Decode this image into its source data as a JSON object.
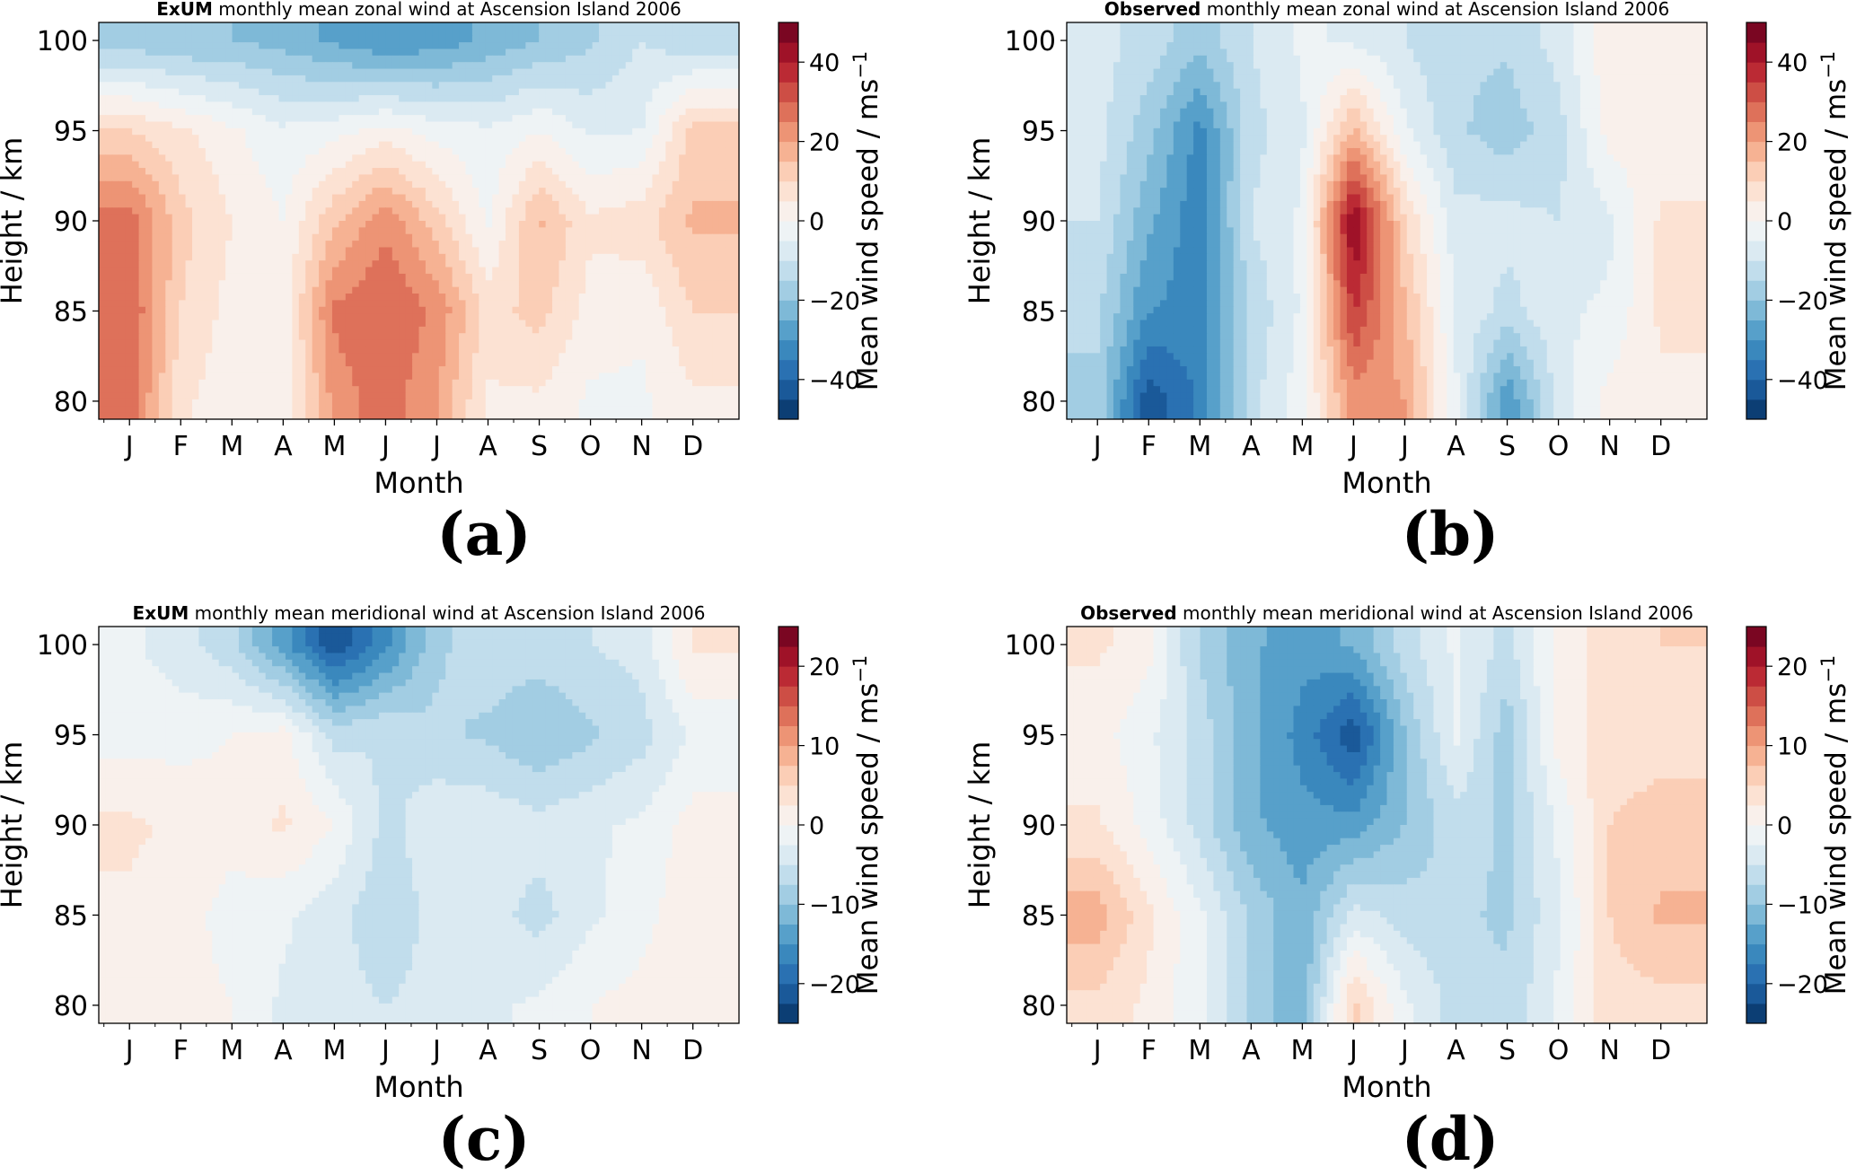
{
  "chart_data": [
    {
      "id": "a",
      "type": "contour",
      "panel_label": "(a)",
      "title_bold": "ExUM",
      "title_rest": " monthly mean zonal wind at Ascension Island 2006",
      "xlabel": "Month",
      "ylabel": "Height / km",
      "x_ticks": [
        "J",
        "F",
        "M",
        "A",
        "M",
        "J",
        "J",
        "A",
        "S",
        "O",
        "N",
        "D"
      ],
      "y_ticks": [
        80,
        85,
        90,
        95,
        100
      ],
      "ylim": [
        79,
        101
      ],
      "colorbar": {
        "label": "Mean wind speed / ms",
        "label_sup": "−1",
        "range": [
          -50,
          50
        ],
        "ticks": [
          40,
          20,
          0,
          -20,
          -40
        ],
        "tick_labels": [
          "40",
          "20",
          "0",
          "−20",
          "−40"
        ]
      },
      "heights": [
        80,
        85,
        90,
        95,
        100
      ],
      "values": [
        [
          28,
          6,
          2,
          0,
          22,
          28,
          20,
          4,
          4,
          -1,
          -1,
          4
        ],
        [
          30,
          10,
          3,
          2,
          26,
          30,
          24,
          8,
          12,
          3,
          1,
          10
        ],
        [
          28,
          12,
          5,
          0,
          14,
          24,
          12,
          -1,
          16,
          6,
          8,
          16
        ],
        [
          10,
          6,
          1,
          -4,
          -2,
          2,
          -2,
          -4,
          0,
          -6,
          -5,
          12
        ],
        [
          -18,
          -20,
          -20,
          -22,
          -26,
          -30,
          -28,
          -24,
          -20,
          -16,
          -10,
          -14
        ]
      ]
    },
    {
      "id": "b",
      "type": "contour",
      "panel_label": "(b)",
      "title_bold": "Observed",
      "title_rest": " monthly mean zonal wind at Ascension Island 2006",
      "xlabel": "Month",
      "ylabel": "Height / km",
      "x_ticks": [
        "J",
        "F",
        "M",
        "A",
        "M",
        "J",
        "J",
        "A",
        "S",
        "O",
        "N",
        "D"
      ],
      "y_ticks": [
        80,
        85,
        90,
        95,
        100
      ],
      "ylim": [
        79,
        101
      ],
      "colorbar": {
        "label": "Mean wind speed / ms",
        "label_sup": "−1",
        "range": [
          -50,
          50
        ],
        "ticks": [
          40,
          20,
          0,
          -20,
          -40
        ],
        "tick_labels": [
          "40",
          "20",
          "0",
          "−20",
          "−40"
        ]
      },
      "heights": [
        80,
        85,
        90,
        95,
        100
      ],
      "values": [
        [
          -16,
          -44,
          -34,
          -12,
          -2,
          22,
          20,
          -4,
          -30,
          -8,
          2,
          4
        ],
        [
          -14,
          -30,
          -32,
          -14,
          -4,
          36,
          16,
          -6,
          -12,
          -6,
          -4,
          6
        ],
        [
          -10,
          -24,
          -34,
          -10,
          -4,
          46,
          10,
          -8,
          -8,
          -10,
          -6,
          6
        ],
        [
          -8,
          -18,
          -32,
          -12,
          -6,
          16,
          -4,
          -14,
          -18,
          -12,
          2,
          2
        ],
        [
          -8,
          -12,
          -18,
          -10,
          -4,
          -6,
          -10,
          -14,
          -14,
          -8,
          4,
          2
        ]
      ]
    },
    {
      "id": "c",
      "type": "contour",
      "panel_label": "(c)",
      "title_bold": "ExUM",
      "title_rest": " monthly mean meridional wind at Ascension Island 2006",
      "xlabel": "Month",
      "ylabel": "Height / km",
      "x_ticks": [
        "J",
        "F",
        "M",
        "A",
        "M",
        "J",
        "J",
        "A",
        "S",
        "O",
        "N",
        "D"
      ],
      "y_ticks": [
        80,
        85,
        90,
        95,
        100
      ],
      "ylim": [
        79,
        101
      ],
      "colorbar": {
        "label": "Mean wind speed / ms",
        "label_sup": "−1",
        "range": [
          -25,
          25
        ],
        "ticks": [
          20,
          10,
          0,
          -10,
          -20
        ],
        "tick_labels": [
          "20",
          "10",
          "0",
          "−10",
          "−20"
        ]
      },
      "heights": [
        80,
        85,
        90,
        95,
        100
      ],
      "values": [
        [
          1,
          1,
          0,
          -3,
          -4,
          -5,
          -4,
          -3,
          -2,
          0,
          1,
          2
        ],
        [
          2,
          1,
          -1,
          -2,
          -4,
          -7,
          -4,
          -4,
          -6,
          -3,
          -1,
          2
        ],
        [
          3,
          2,
          1,
          3,
          0,
          -6,
          -3,
          -3,
          -4,
          -3,
          -2,
          1
        ],
        [
          -1,
          -1,
          0,
          1,
          -6,
          -5,
          -7,
          -8,
          -10,
          -8,
          -6,
          -2
        ],
        [
          -2,
          -4,
          -7,
          -14,
          -22,
          -16,
          -8,
          -6,
          -6,
          -5,
          -4,
          3
        ]
      ]
    },
    {
      "id": "d",
      "type": "contour",
      "panel_label": "(d)",
      "title_bold": "Observed",
      "title_rest": " monthly mean meridional wind at Ascension Island 2006",
      "xlabel": "Month",
      "ylabel": "Height / km",
      "x_ticks": [
        "J",
        "F",
        "M",
        "A",
        "M",
        "J",
        "J",
        "A",
        "S",
        "O",
        "N",
        "D"
      ],
      "y_ticks": [
        80,
        85,
        90,
        95,
        100
      ],
      "ylim": [
        79,
        101
      ],
      "colorbar": {
        "label": "Mean wind speed / ms",
        "label_sup": "−1",
        "range": [
          -25,
          25
        ],
        "ticks": [
          20,
          10,
          0,
          -10,
          -20
        ],
        "tick_labels": [
          "20",
          "10",
          "0",
          "−10",
          "−20"
        ]
      },
      "heights": [
        80,
        85,
        90,
        95,
        100
      ],
      "values": [
        [
          4,
          2,
          -2,
          -8,
          -12,
          6,
          -2,
          -6,
          -7,
          -2,
          4,
          4
        ],
        [
          9,
          3,
          -2,
          -8,
          -12,
          -4,
          -6,
          -7,
          -8,
          -3,
          5,
          8
        ],
        [
          3,
          -1,
          -6,
          -12,
          -14,
          -14,
          -10,
          -6,
          -8,
          -2,
          5,
          6
        ],
        [
          1,
          -2,
          -6,
          -12,
          -16,
          -22,
          -10,
          -2,
          -9,
          1,
          4,
          4
        ],
        [
          3,
          1,
          -8,
          -12,
          -14,
          -12,
          -6,
          -2,
          -6,
          1,
          4,
          5
        ]
      ]
    }
  ]
}
